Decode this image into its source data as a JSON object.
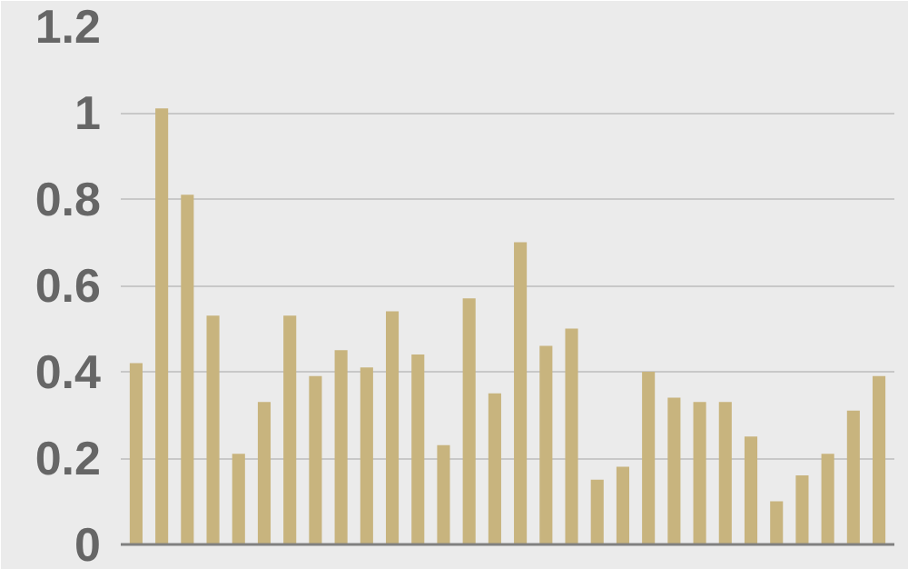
{
  "chart_data": {
    "type": "bar",
    "categories": [
      null,
      null,
      null,
      null,
      null,
      null,
      null,
      null,
      null,
      null,
      null,
      null,
      null,
      null,
      null,
      null,
      null,
      null,
      null,
      null,
      null,
      null,
      null,
      null,
      null,
      null,
      null,
      null,
      null,
      null
    ],
    "values": [
      0.42,
      1.01,
      0.81,
      0.53,
      0.21,
      0.33,
      0.53,
      0.39,
      0.45,
      0.41,
      0.54,
      0.44,
      0.23,
      0.57,
      0.35,
      0.7,
      0.46,
      0.5,
      0.15,
      0.18,
      0.4,
      0.34,
      0.33,
      0.33,
      0.25,
      0.1,
      0.16,
      0.21,
      0.31,
      0.39
    ],
    "color": "#c8b47e",
    "ylim": [
      0,
      1.2
    ],
    "yticks": [
      0,
      0.2,
      0.4,
      0.6,
      0.8,
      1,
      1.2
    ],
    "grid": "y",
    "tick_labels": "y"
  }
}
